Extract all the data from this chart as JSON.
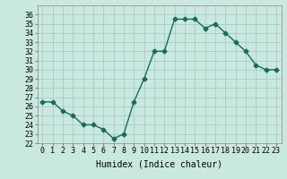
{
  "x": [
    0,
    1,
    2,
    3,
    4,
    5,
    6,
    7,
    8,
    9,
    10,
    11,
    12,
    13,
    14,
    15,
    16,
    17,
    18,
    19,
    20,
    21,
    22,
    23
  ],
  "y": [
    26.5,
    26.5,
    25.5,
    25.0,
    24.0,
    24.0,
    23.5,
    22.5,
    23.0,
    26.5,
    29.0,
    32.0,
    32.0,
    35.5,
    35.5,
    35.5,
    34.5,
    35.0,
    34.0,
    33.0,
    32.0,
    30.5,
    30.0,
    30.0
  ],
  "line_color": "#1a6b5a",
  "marker": "D",
  "marker_size": 2.5,
  "bg_color": "#c8e8e0",
  "grid_color": "#a0c8c0",
  "xlabel": "Humidex (Indice chaleur)",
  "xlim": [
    -0.5,
    23.5
  ],
  "ylim": [
    22,
    37
  ],
  "yticks": [
    22,
    23,
    24,
    25,
    26,
    27,
    28,
    29,
    30,
    31,
    32,
    33,
    34,
    35,
    36
  ],
  "xticks": [
    0,
    1,
    2,
    3,
    4,
    5,
    6,
    7,
    8,
    9,
    10,
    11,
    12,
    13,
    14,
    15,
    16,
    17,
    18,
    19,
    20,
    21,
    22,
    23
  ],
  "xtick_labels": [
    "0",
    "1",
    "2",
    "3",
    "4",
    "5",
    "6",
    "7",
    "8",
    "9",
    "10",
    "11",
    "12",
    "13",
    "14",
    "15",
    "16",
    "17",
    "18",
    "19",
    "20",
    "21",
    "22",
    "23"
  ],
  "xlabel_fontsize": 7,
  "tick_fontsize": 6,
  "linewidth": 1.0
}
